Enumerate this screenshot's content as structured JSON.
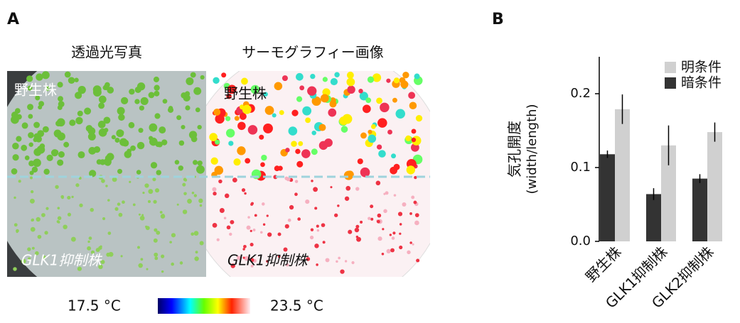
{
  "panel_a": {
    "label": "A",
    "left_title": "透過光写真",
    "right_title": "サーモグラフィー画像",
    "left_top": "野生株",
    "left_bottom": "GLK1抑制株",
    "right_top": "野生株",
    "right_bottom": "GLK1抑制株",
    "scale_min": "17.5 °C",
    "scale_max": "23.5 °C"
  },
  "chart_data": {
    "type": "bar",
    "panel_label": "B",
    "y_label": [
      "気孔開度",
      "(width/length)"
    ],
    "categories": [
      "野生株",
      "GLK1抑制株",
      "GLK2抑制株"
    ],
    "series": [
      {
        "name": "暗条件",
        "color": "#333333",
        "values": [
          0.118,
          0.064,
          0.085
        ],
        "errors": [
          0.005,
          0.008,
          0.006
        ]
      },
      {
        "name": "明条件",
        "color": "#d0d0d0",
        "values": [
          0.179,
          0.13,
          0.148
        ],
        "errors": [
          0.02,
          0.027,
          0.013
        ]
      }
    ],
    "ylim": [
      0,
      0.25
    ],
    "yticks": [
      {
        "value": 0,
        "label": "0.0"
      },
      0.1,
      0.2
    ]
  }
}
